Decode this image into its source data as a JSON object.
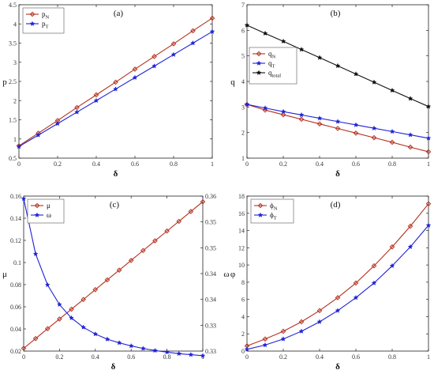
{
  "chart_data": [
    {
      "id": "a",
      "type": "line",
      "panel_label": "(a)",
      "xlabel": "δ",
      "ylabel": "p",
      "xlim": [
        0,
        1
      ],
      "ylim": [
        0.5,
        4.5
      ],
      "xticks": [
        0,
        0.2,
        0.4,
        0.6,
        0.8,
        1
      ],
      "xtick_labels": [
        "0",
        "0.2",
        "0.4",
        "0.6",
        "0.8",
        "1"
      ],
      "yticks": [
        0.5,
        1,
        1.5,
        2,
        2.5,
        3,
        3.5,
        4,
        4.5
      ],
      "ytick_labels": [
        "0.5",
        "1",
        "1.5",
        "2",
        "2.5",
        "3",
        "3.5",
        "4",
        "4.5"
      ],
      "legend": "top-left",
      "x": [
        0,
        0.1,
        0.2,
        0.3,
        0.4,
        0.5,
        0.6,
        0.7,
        0.8,
        0.9,
        1
      ],
      "series": [
        {
          "name": "p",
          "sub": "N",
          "color": "#b5301f",
          "marker": "diamond",
          "values": [
            0.82,
            1.15,
            1.48,
            1.82,
            2.15,
            2.48,
            2.82,
            3.15,
            3.48,
            3.82,
            4.15
          ]
        },
        {
          "name": "p",
          "sub": "T",
          "color": "#1f23d6",
          "marker": "star",
          "values": [
            0.8,
            1.1,
            1.4,
            1.7,
            2.0,
            2.3,
            2.6,
            2.9,
            3.2,
            3.5,
            3.8
          ]
        }
      ]
    },
    {
      "id": "b",
      "type": "line",
      "panel_label": "(b)",
      "xlabel": "δ",
      "ylabel": "q",
      "xlim": [
        0,
        1
      ],
      "ylim": [
        1,
        7
      ],
      "xticks": [
        0,
        0.2,
        0.4,
        0.6,
        0.8,
        1
      ],
      "xtick_labels": [
        "0",
        "0.2",
        "0.4",
        "0.6",
        "0.8",
        "1"
      ],
      "yticks": [
        1,
        2,
        3,
        4,
        5,
        6,
        7
      ],
      "ytick_labels": [
        "1",
        "2",
        "3",
        "4",
        "5",
        "6",
        "7"
      ],
      "legend": "center-left",
      "x": [
        0,
        0.1,
        0.2,
        0.3,
        0.4,
        0.5,
        0.6,
        0.7,
        0.8,
        0.9,
        1
      ],
      "series": [
        {
          "name": "q",
          "sub": "N",
          "color": "#b5301f",
          "marker": "diamond",
          "values": [
            3.1,
            2.88,
            2.7,
            2.52,
            2.34,
            2.16,
            1.98,
            1.8,
            1.62,
            1.43,
            1.25
          ]
        },
        {
          "name": "q",
          "sub": "T",
          "color": "#1f23d6",
          "marker": "star",
          "values": [
            3.1,
            2.96,
            2.82,
            2.69,
            2.56,
            2.43,
            2.3,
            2.17,
            2.04,
            1.91,
            1.78
          ]
        },
        {
          "name": "q",
          "sub": "total",
          "color": "#111111",
          "marker": "star",
          "values": [
            6.2,
            5.88,
            5.57,
            5.25,
            4.93,
            4.61,
            4.29,
            3.97,
            3.65,
            3.33,
            3.02
          ]
        }
      ]
    },
    {
      "id": "c",
      "type": "line",
      "panel_label": "(c)",
      "xlabel": "δ",
      "ylabel": "μ",
      "y2label": "ω",
      "xlim": [
        0,
        1
      ],
      "ylim": [
        0.02,
        0.16
      ],
      "y2lim": [
        0.33,
        0.36
      ],
      "xticks": [
        0,
        0.2,
        0.4,
        0.6,
        0.8,
        1
      ],
      "xtick_labels": [
        "0",
        "0.2",
        "0.4",
        "0.6",
        "0.8",
        "1"
      ],
      "yticks": [
        0.02,
        0.04,
        0.06,
        0.08,
        0.1,
        0.12,
        0.14,
        0.16
      ],
      "ytick_labels": [
        "0.02",
        "0.04",
        "0.06",
        "0.08",
        "0.1",
        "0.12",
        "0.14",
        "0.16"
      ],
      "y2ticks": [
        0.33,
        0.335,
        0.34,
        0.345,
        0.35,
        0.355,
        0.36
      ],
      "y2tick_labels": [
        "0.33",
        "0.33",
        "0.34",
        "0.34",
        "0.35",
        "0.35",
        "0.36"
      ],
      "legend": "top-left",
      "series": [
        {
          "name": "μ",
          "sub": "",
          "color": "#b5301f",
          "marker": "diamond",
          "axis": "left",
          "x": [
            0,
            0.0667,
            0.1333,
            0.2,
            0.2667,
            0.3333,
            0.4,
            0.4667,
            0.5333,
            0.6,
            0.6667,
            0.7333,
            0.8,
            0.8667,
            0.9333,
            1
          ],
          "values": [
            0.0225,
            0.0313,
            0.0402,
            0.049,
            0.0578,
            0.0666,
            0.0755,
            0.0843,
            0.0931,
            0.1019,
            0.1108,
            0.1196,
            0.1284,
            0.1372,
            0.1461,
            0.1549
          ]
        },
        {
          "name": "ω",
          "sub": "",
          "color": "#1f23d6",
          "marker": "star",
          "axis": "right",
          "x": [
            0,
            0.0667,
            0.1333,
            0.2,
            0.2667,
            0.3333,
            0.4,
            0.4667,
            0.5333,
            0.6,
            0.6667,
            0.7333,
            0.8,
            0.8667,
            0.9333,
            1
          ],
          "values": [
            0.3595,
            0.3488,
            0.3428,
            0.339,
            0.3364,
            0.3346,
            0.3333,
            0.3323,
            0.3316,
            0.331,
            0.3305,
            0.3301,
            0.3298,
            0.3295,
            0.3293,
            0.3291
          ]
        }
      ]
    },
    {
      "id": "d",
      "type": "line",
      "panel_label": "(d)",
      "xlabel": "δ",
      "ylabel": "φ",
      "xlim": [
        0,
        1
      ],
      "ylim": [
        0,
        18
      ],
      "xticks": [
        0,
        0.2,
        0.4,
        0.6,
        0.8,
        1
      ],
      "xtick_labels": [
        "0",
        "0.2",
        "0.4",
        "0.6",
        "0.8",
        "1"
      ],
      "yticks": [
        0,
        2,
        4,
        6,
        8,
        10,
        12,
        14,
        16,
        18
      ],
      "ytick_labels": [
        "0",
        "2",
        "4",
        "6",
        "8",
        "10",
        "12",
        "14",
        "16",
        "18"
      ],
      "legend": "top-left",
      "x": [
        0,
        0.1,
        0.2,
        0.3,
        0.4,
        0.5,
        0.6,
        0.7,
        0.8,
        0.9,
        1
      ],
      "series": [
        {
          "name": "ϕ",
          "sub": "N",
          "color": "#b5301f",
          "marker": "diamond",
          "values": [
            0.6,
            1.4,
            2.3,
            3.4,
            4.7,
            6.2,
            7.9,
            9.9,
            12.1,
            14.5,
            17.1
          ]
        },
        {
          "name": "ϕ",
          "sub": "T",
          "color": "#1f23d6",
          "marker": "star",
          "values": [
            0.2,
            0.7,
            1.4,
            2.3,
            3.4,
            4.7,
            6.2,
            7.9,
            9.9,
            12.1,
            14.6
          ]
        }
      ]
    }
  ]
}
